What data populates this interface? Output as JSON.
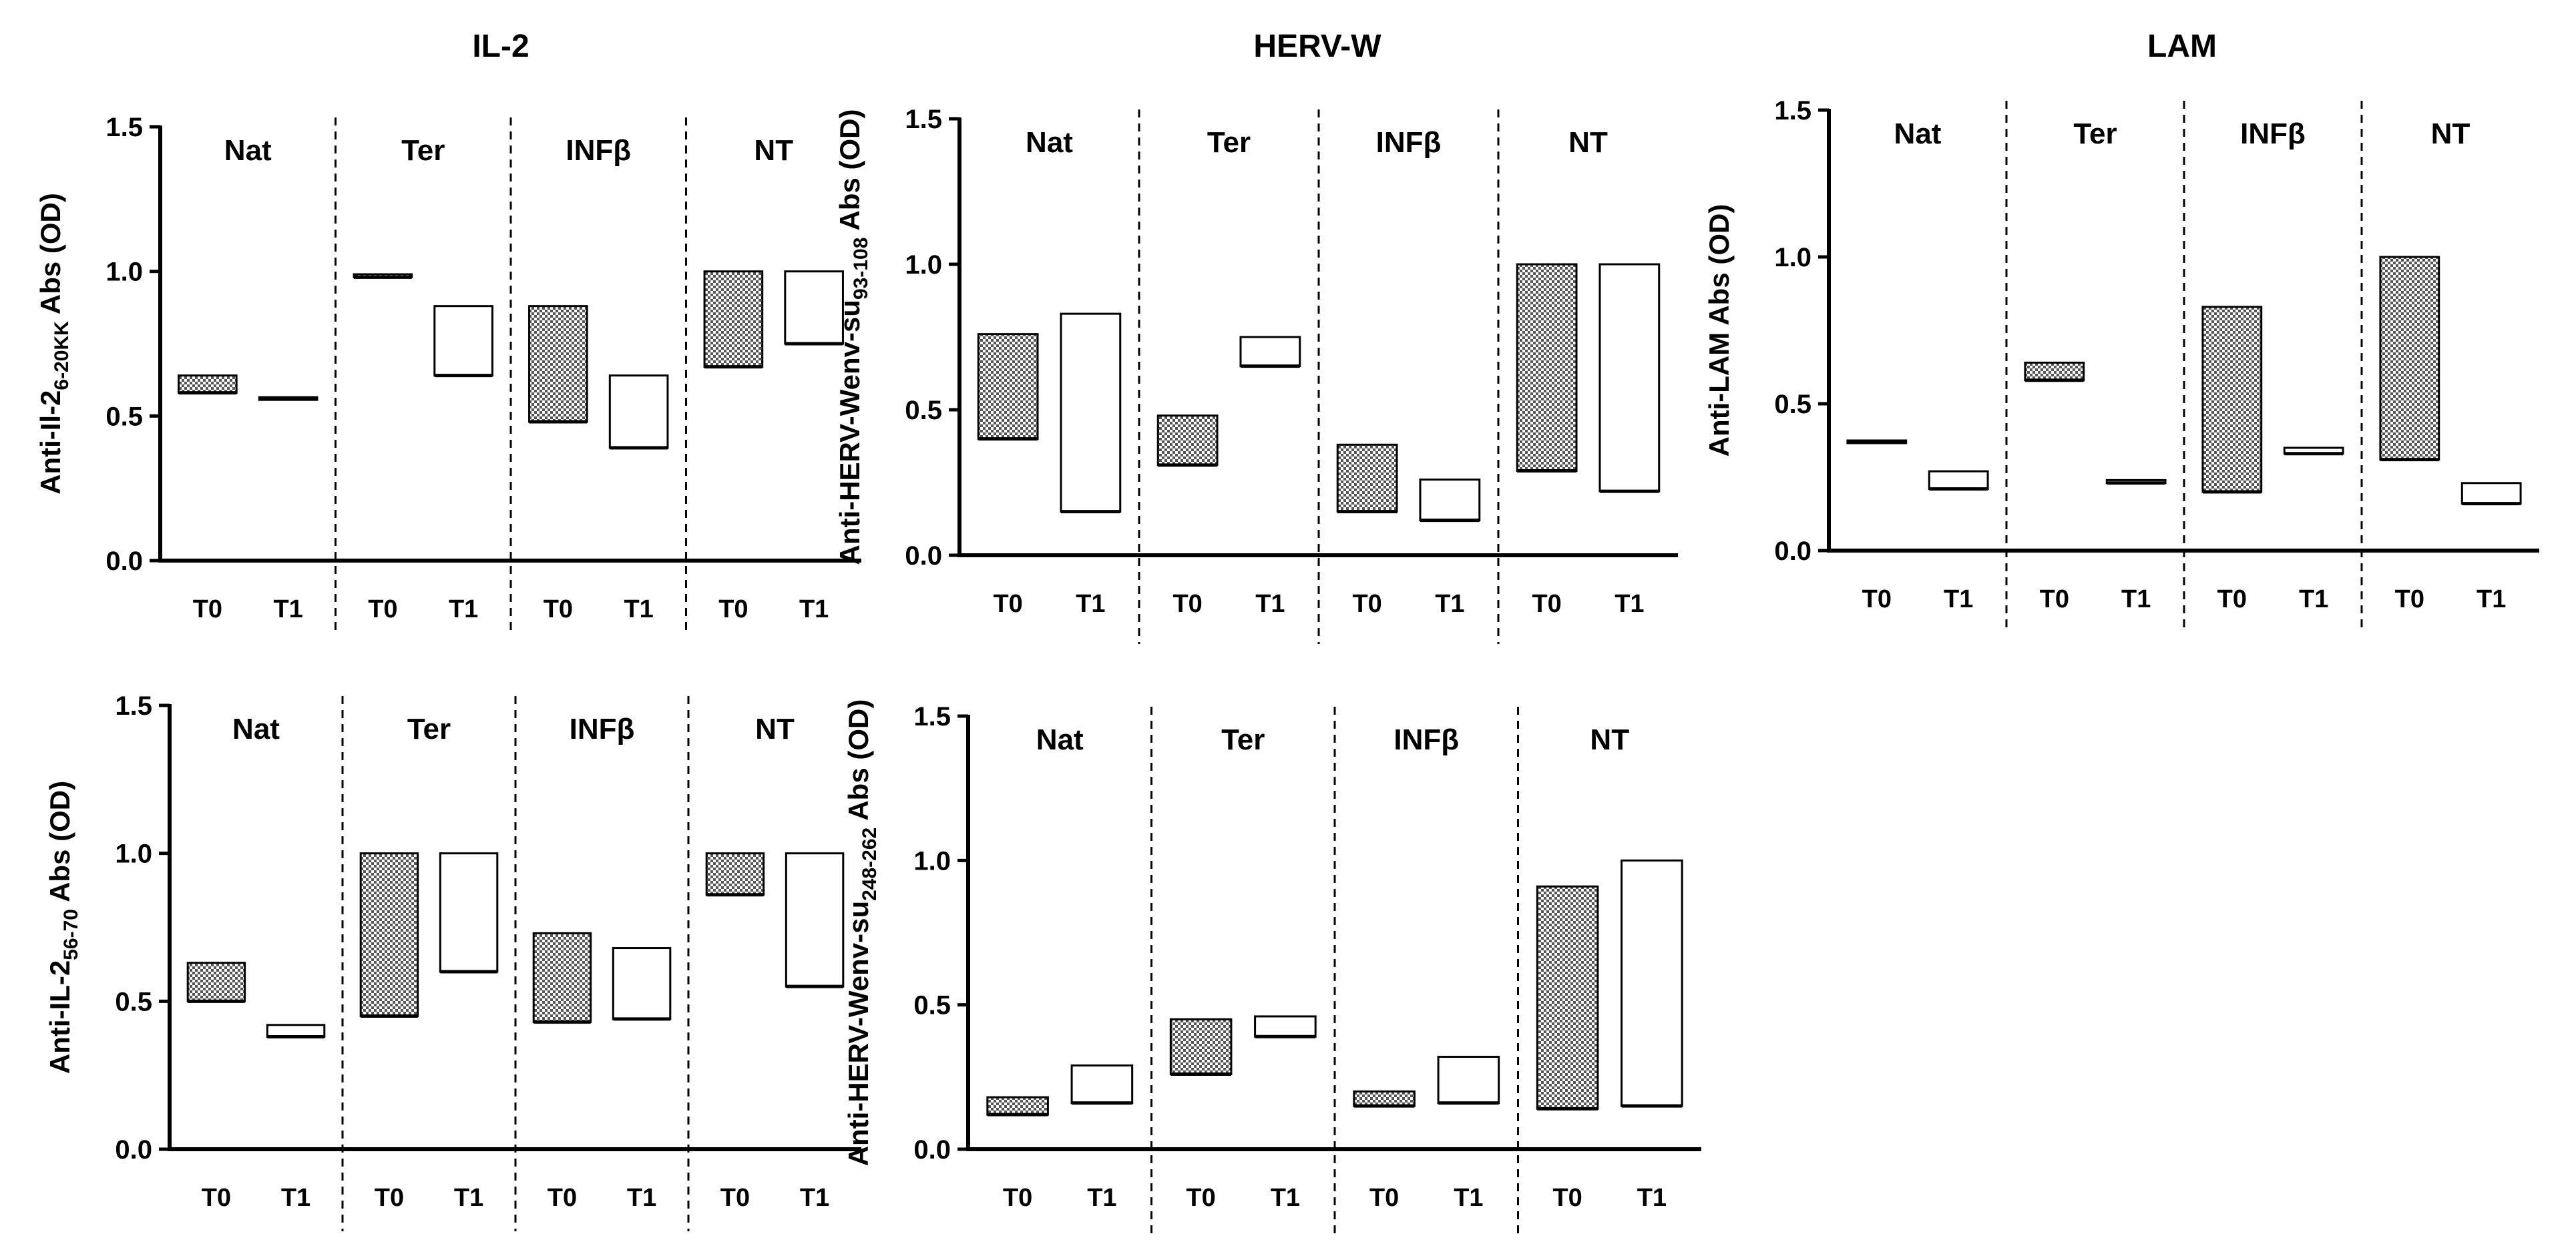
{
  "colors": {
    "stroke": "#000000",
    "fill_t0": "#8c8c8c",
    "fill_t1": "#ffffff"
  },
  "titles": {
    "col1": "IL-2",
    "col2": "HERV-W",
    "col3": "LAM"
  },
  "chart_data": [
    {
      "id": "il2-6-20kk",
      "type": "floating-bar",
      "ylabel": {
        "text": "Anti-Il-2",
        "sub": "6-20KK",
        "suffix": " Abs (OD)"
      },
      "ylim": [
        0,
        1.5
      ],
      "yticks": [
        "0.0",
        "0.5",
        "1.0",
        "1.5"
      ],
      "groups": [
        "Nat",
        "Ter",
        "INFβ",
        "NT"
      ],
      "timepoints": [
        "T0",
        "T1"
      ],
      "bars": [
        {
          "group": "Nat",
          "time": "T0",
          "low": 0.58,
          "high": 0.64
        },
        {
          "group": "Nat",
          "time": "T1",
          "low": 0.56,
          "high": 0.565
        },
        {
          "group": "Ter",
          "time": "T0",
          "low": 0.98,
          "high": 0.99
        },
        {
          "group": "Ter",
          "time": "T1",
          "low": 0.64,
          "high": 0.88
        },
        {
          "group": "INFβ",
          "time": "T0",
          "low": 0.48,
          "high": 0.88
        },
        {
          "group": "INFβ",
          "time": "T1",
          "low": 0.39,
          "high": 0.64
        },
        {
          "group": "NT",
          "time": "T0",
          "low": 0.67,
          "high": 1.0
        },
        {
          "group": "NT",
          "time": "T1",
          "low": 0.75,
          "high": 1.0
        }
      ]
    },
    {
      "id": "herv-93-108",
      "type": "floating-bar",
      "ylabel": {
        "text": "Anti-HERV-Wenv-su",
        "sub": "93-108",
        "suffix": " Abs (OD)"
      },
      "ylim": [
        0,
        1.5
      ],
      "yticks": [
        "0.0",
        "0.5",
        "1.0",
        "1.5"
      ],
      "groups": [
        "Nat",
        "Ter",
        "INFβ",
        "NT"
      ],
      "timepoints": [
        "T0",
        "T1"
      ],
      "bars": [
        {
          "group": "Nat",
          "time": "T0",
          "low": 0.4,
          "high": 0.76
        },
        {
          "group": "Nat",
          "time": "T1",
          "low": 0.15,
          "high": 0.83
        },
        {
          "group": "Ter",
          "time": "T0",
          "low": 0.31,
          "high": 0.48
        },
        {
          "group": "Ter",
          "time": "T1",
          "low": 0.65,
          "high": 0.75
        },
        {
          "group": "INFβ",
          "time": "T0",
          "low": 0.15,
          "high": 0.38
        },
        {
          "group": "INFβ",
          "time": "T1",
          "low": 0.12,
          "high": 0.26
        },
        {
          "group": "NT",
          "time": "T0",
          "low": 0.29,
          "high": 1.0
        },
        {
          "group": "NT",
          "time": "T1",
          "low": 0.22,
          "high": 1.0
        }
      ]
    },
    {
      "id": "lam",
      "type": "floating-bar",
      "ylabel": {
        "text": "Anti-LAM Abs (OD)",
        "sub": "",
        "suffix": ""
      },
      "ylim": [
        0,
        1.5
      ],
      "yticks": [
        "0.0",
        "0.5",
        "1.0",
        "1.5"
      ],
      "groups": [
        "Nat",
        "Ter",
        "INFβ",
        "NT"
      ],
      "timepoints": [
        "T0",
        "T1"
      ],
      "bars": [
        {
          "group": "Nat",
          "time": "T0",
          "low": 0.37,
          "high": 0.375
        },
        {
          "group": "Nat",
          "time": "T1",
          "low": 0.21,
          "high": 0.27
        },
        {
          "group": "Ter",
          "time": "T0",
          "low": 0.58,
          "high": 0.64
        },
        {
          "group": "Ter",
          "time": "T1",
          "low": 0.23,
          "high": 0.24
        },
        {
          "group": "INFβ",
          "time": "T0",
          "low": 0.2,
          "high": 0.83
        },
        {
          "group": "INFβ",
          "time": "T1",
          "low": 0.33,
          "high": 0.35
        },
        {
          "group": "NT",
          "time": "T0",
          "low": 0.31,
          "high": 1.0
        },
        {
          "group": "NT",
          "time": "T1",
          "low": 0.16,
          "high": 0.23
        }
      ]
    },
    {
      "id": "il2-56-70",
      "type": "floating-bar",
      "ylabel": {
        "text": "Anti-IL-2",
        "sub": "56-70",
        "suffix": " Abs (OD)"
      },
      "ylim": [
        0,
        1.5
      ],
      "yticks": [
        "0.0",
        "0.5",
        "1.0",
        "1.5"
      ],
      "groups": [
        "Nat",
        "Ter",
        "INFβ",
        "NT"
      ],
      "timepoints": [
        "T0",
        "T1"
      ],
      "bars": [
        {
          "group": "Nat",
          "time": "T0",
          "low": 0.5,
          "high": 0.63
        },
        {
          "group": "Nat",
          "time": "T1",
          "low": 0.38,
          "high": 0.42
        },
        {
          "group": "Ter",
          "time": "T0",
          "low": 0.45,
          "high": 1.0
        },
        {
          "group": "Ter",
          "time": "T1",
          "low": 0.6,
          "high": 1.0
        },
        {
          "group": "INFβ",
          "time": "T0",
          "low": 0.43,
          "high": 0.73
        },
        {
          "group": "INFβ",
          "time": "T1",
          "low": 0.44,
          "high": 0.68
        },
        {
          "group": "NT",
          "time": "T0",
          "low": 0.86,
          "high": 1.0
        },
        {
          "group": "NT",
          "time": "T1",
          "low": 0.55,
          "high": 1.0
        }
      ]
    },
    {
      "id": "herv-248-262",
      "type": "floating-bar",
      "ylabel": {
        "text": "Anti-HERV-Wenv-su",
        "sub": "248-262",
        "suffix": " Abs (OD)"
      },
      "ylim": [
        0,
        1.5
      ],
      "yticks": [
        "0.0",
        "0.5",
        "1.0",
        "1.5"
      ],
      "groups": [
        "Nat",
        "Ter",
        "INFβ",
        "NT"
      ],
      "timepoints": [
        "T0",
        "T1"
      ],
      "bars": [
        {
          "group": "Nat",
          "time": "T0",
          "low": 0.12,
          "high": 0.18
        },
        {
          "group": "Nat",
          "time": "T1",
          "low": 0.16,
          "high": 0.29
        },
        {
          "group": "Ter",
          "time": "T0",
          "low": 0.26,
          "high": 0.45
        },
        {
          "group": "Ter",
          "time": "T1",
          "low": 0.39,
          "high": 0.46
        },
        {
          "group": "INFβ",
          "time": "T0",
          "low": 0.15,
          "high": 0.2
        },
        {
          "group": "INFβ",
          "time": "T1",
          "low": 0.16,
          "high": 0.32
        },
        {
          "group": "NT",
          "time": "T0",
          "low": 0.14,
          "high": 0.91
        },
        {
          "group": "NT",
          "time": "T1",
          "low": 0.15,
          "high": 1.0
        }
      ]
    }
  ]
}
